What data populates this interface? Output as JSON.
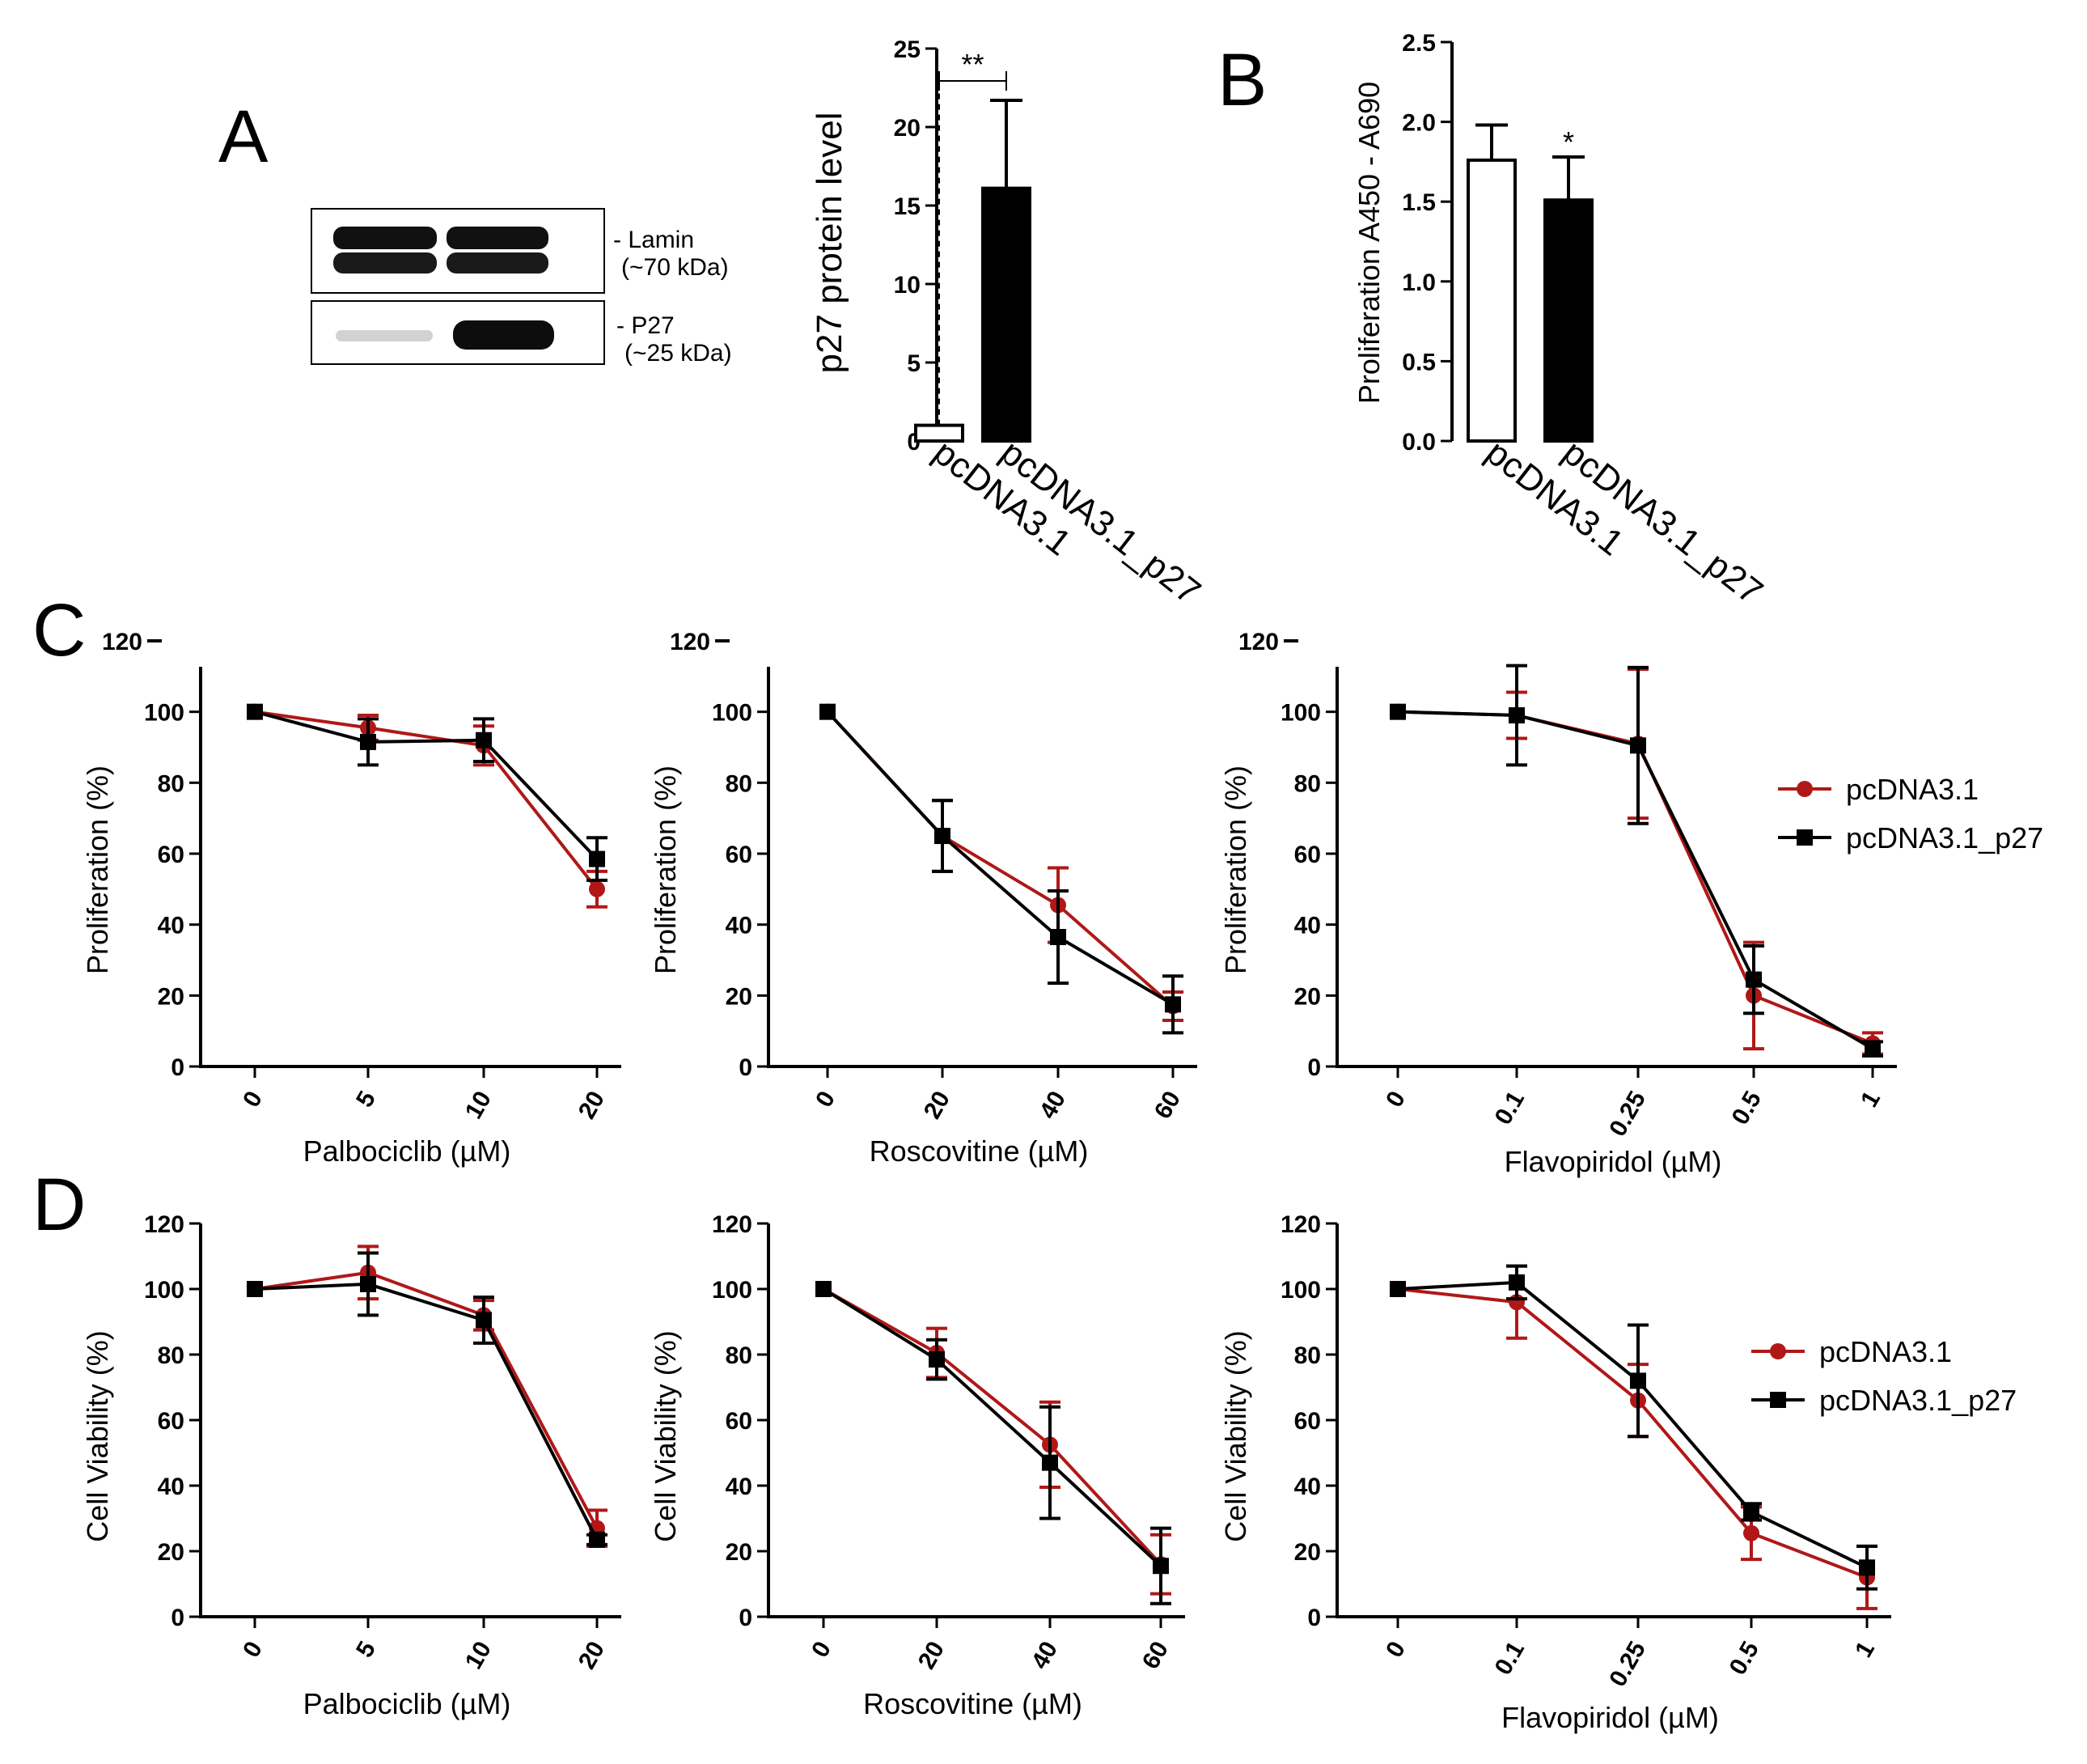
{
  "panels": {
    "A": {
      "letter": "A",
      "blot": {
        "bands": [
          {
            "name": "- Lamin",
            "size": "(~70 kDa)"
          },
          {
            "name": "- P27",
            "size": "(~25 kDa)"
          }
        ]
      }
    },
    "B": {
      "letter": "B"
    },
    "C": {
      "letter": "C"
    },
    "D": {
      "letter": "D"
    }
  },
  "colors": {
    "pcDNA3.1": "#b01818",
    "pcDNA3.1_p27": "#000000"
  },
  "legend": [
    "pcDNA3.1",
    "pcDNA3.1_p27"
  ],
  "chart_data": [
    {
      "id": "A-bar",
      "type": "bar",
      "categories": [
        "pcDNA3.1",
        "pcDNA3.1_p27"
      ],
      "values": [
        1,
        16.1
      ],
      "errors": [
        0,
        5.6
      ],
      "fills": [
        "#ffffff",
        "#000000"
      ],
      "ylabel": "p27 protein level",
      "ylim": [
        0,
        25
      ],
      "yticks": [
        "0",
        "5",
        "10",
        "15",
        "20",
        "25"
      ],
      "annotation": "**"
    },
    {
      "id": "B-bar",
      "type": "bar",
      "categories": [
        "pcDNA3.1",
        "pcDNA3.1_p27"
      ],
      "values": [
        1.76,
        1.51
      ],
      "errors": [
        0.22,
        0.27
      ],
      "fills": [
        "#ffffff",
        "#000000"
      ],
      "ylabel": "Proliferation A450 - A690",
      "ylim": [
        0,
        2.5
      ],
      "yticks": [
        "0.0",
        "0.5",
        "1.0",
        "1.5",
        "2.0",
        "2.5"
      ],
      "annotation": "*"
    },
    {
      "id": "C1",
      "type": "line",
      "xlabel": "Palbociclib (µM)",
      "ylabel": "Proliferation (%)",
      "x": [
        "0",
        "5",
        "10",
        "20"
      ],
      "ylim": [
        0,
        120
      ],
      "yticks": [
        "0",
        "20",
        "40",
        "60",
        "80",
        "100",
        "120"
      ],
      "series": [
        {
          "name": "pcDNA3.1",
          "values": [
            100,
            95.5,
            90.5,
            50
          ],
          "errors": [
            0,
            3.5,
            5.5,
            5
          ]
        },
        {
          "name": "pcDNA3.1_p27",
          "values": [
            100,
            91.5,
            92,
            58.5
          ],
          "errors": [
            0,
            6.5,
            6,
            6
          ]
        }
      ]
    },
    {
      "id": "C2",
      "type": "line",
      "xlabel": "Roscovitine (µM)",
      "ylabel": "Proliferation (%)",
      "x": [
        "0",
        "20",
        "40",
        "60"
      ],
      "ylim": [
        0,
        120
      ],
      "yticks": [
        "0",
        "20",
        "40",
        "60",
        "80",
        "100",
        "120"
      ],
      "series": [
        {
          "name": "pcDNA3.1",
          "values": [
            100,
            65,
            45.5,
            17
          ],
          "errors": [
            0,
            10,
            10.5,
            4
          ]
        },
        {
          "name": "pcDNA3.1_p27",
          "values": [
            100,
            65,
            36.5,
            17.5
          ],
          "errors": [
            0,
            10,
            13,
            8
          ]
        }
      ]
    },
    {
      "id": "C3",
      "type": "line",
      "xlabel": "Flavopiridol (µM)",
      "ylabel": "Proliferation (%)",
      "x": [
        "0",
        "0.1",
        "0.25",
        "0.5",
        "1"
      ],
      "ylim": [
        0,
        120
      ],
      "yticks": [
        "0",
        "20",
        "40",
        "60",
        "80",
        "100",
        "120"
      ],
      "legend": "right",
      "series": [
        {
          "name": "pcDNA3.1",
          "values": [
            100,
            99,
            91,
            20,
            6.5
          ],
          "errors": [
            0,
            6.5,
            21,
            15,
            3
          ]
        },
        {
          "name": "pcDNA3.1_p27",
          "values": [
            100,
            99,
            90.5,
            24.5,
            5
          ],
          "errors": [
            0,
            14,
            22,
            9.5,
            2
          ]
        }
      ]
    },
    {
      "id": "D1",
      "type": "line",
      "xlabel": "Palbociclib (µM)",
      "ylabel": "Cell Viability (%)",
      "x": [
        "0",
        "5",
        "10",
        "20"
      ],
      "ylim": [
        0,
        120
      ],
      "yticks": [
        "0",
        "20",
        "40",
        "60",
        "80",
        "100",
        "120"
      ],
      "series": [
        {
          "name": "pcDNA3.1",
          "values": [
            100,
            105,
            92,
            27
          ],
          "errors": [
            0,
            8,
            4.5,
            5.5
          ]
        },
        {
          "name": "pcDNA3.1_p27",
          "values": [
            100,
            101.5,
            90.5,
            23.5
          ],
          "errors": [
            0,
            9.5,
            7,
            1.5
          ]
        }
      ]
    },
    {
      "id": "D2",
      "type": "line",
      "xlabel": "Roscovitine (µM)",
      "ylabel": "Cell Viability (%)",
      "x": [
        "0",
        "20",
        "40",
        "60"
      ],
      "ylim": [
        0,
        120
      ],
      "yticks": [
        "0",
        "20",
        "40",
        "60",
        "80",
        "100",
        "120"
      ],
      "series": [
        {
          "name": "pcDNA3.1",
          "values": [
            100,
            80.5,
            52.5,
            16
          ],
          "errors": [
            0,
            7.5,
            13,
            9
          ]
        },
        {
          "name": "pcDNA3.1_p27",
          "values": [
            100,
            78.5,
            47,
            15.5
          ],
          "errors": [
            0,
            6,
            17,
            11.5
          ]
        }
      ]
    },
    {
      "id": "D3",
      "type": "line",
      "xlabel": "Flavopiridol (µM)",
      "ylabel": "Cell Viability (%)",
      "x": [
        "0",
        "0.1",
        "0.25",
        "0.5",
        "1"
      ],
      "ylim": [
        0,
        120
      ],
      "yticks": [
        "0",
        "20",
        "40",
        "60",
        "80",
        "100",
        "120"
      ],
      "legend": "right",
      "series": [
        {
          "name": "pcDNA3.1",
          "values": [
            100,
            96,
            66,
            25.5,
            12
          ],
          "errors": [
            0,
            11,
            11,
            8,
            9.5
          ]
        },
        {
          "name": "pcDNA3.1_p27",
          "values": [
            100,
            102,
            72,
            32,
            15
          ],
          "errors": [
            0,
            5,
            17,
            2.5,
            6.5
          ]
        }
      ]
    }
  ]
}
